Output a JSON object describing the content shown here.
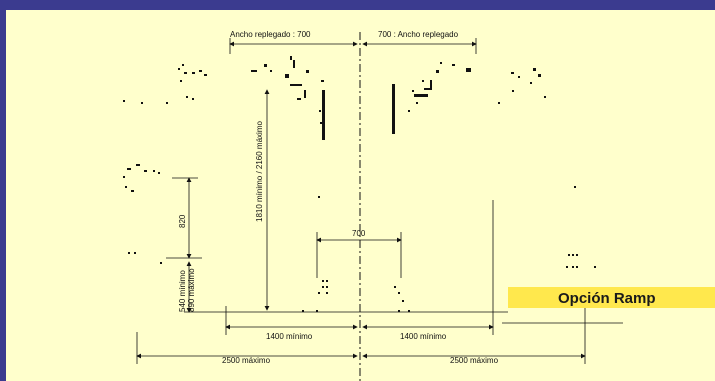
{
  "labels": {
    "ancho_left": "Ancho replegado : 700",
    "ancho_right": "700 : Ancho replegado",
    "h_1810": "1810 mínimo / 2160 máximo",
    "h_820": "820",
    "h_540": "540 mínimo",
    "h_890": "890 máximo",
    "w_700": "700",
    "w_1400_left": "1400 mínimo",
    "w_1400_right": "1400 mínimo",
    "w_2500_left": "2500 máximo",
    "w_2500_right": "2500 máximo"
  },
  "ramp": {
    "label": "Opción Ramp"
  },
  "colors": {
    "frame": "#3b3b8f",
    "background": "#ffffcc",
    "ramp_fill": "#ffe84d",
    "line": "#111111"
  }
}
